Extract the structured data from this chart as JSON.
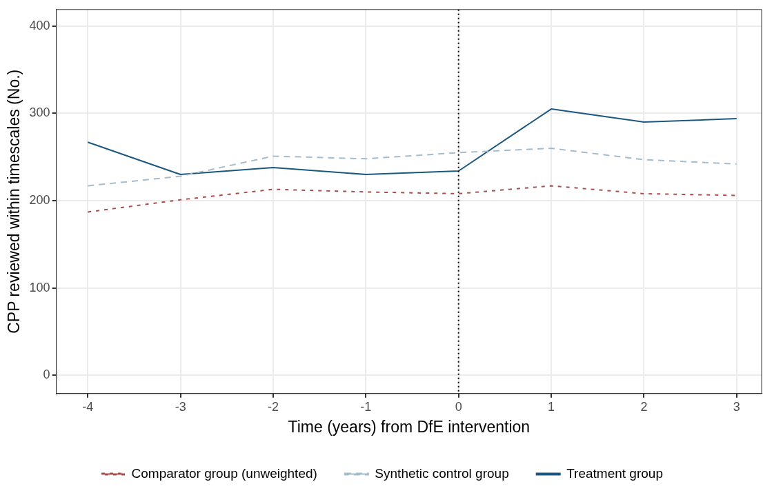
{
  "chart_data": {
    "type": "line",
    "xlabel": "Time (years) from DfE intervention",
    "ylabel": "CPP reviewed within timescales (No.)",
    "x": [
      -4,
      -3,
      -2,
      -1,
      0,
      1,
      2,
      3
    ],
    "series": [
      {
        "name": "Comparator group (unweighted)",
        "color": "#a84d4d",
        "line_style": "dashed",
        "values": [
          187,
          201,
          213,
          210,
          208,
          217,
          208,
          206
        ]
      },
      {
        "name": "Synthetic control group",
        "color": "#a3bccc",
        "line_style": "dashed",
        "values": [
          217,
          228,
          251,
          248,
          255,
          260,
          247,
          242
        ]
      },
      {
        "name": "Treatment group",
        "color": "#1b577e",
        "line_style": "solid",
        "values": [
          267,
          230,
          238,
          230,
          234,
          305,
          290,
          294
        ]
      }
    ],
    "xlim": [
      -4.34,
      3.27
    ],
    "xticks": [
      -4,
      -3,
      -2,
      -1,
      0,
      1,
      2,
      3
    ],
    "ylim": [
      -21,
      419
    ],
    "yticks": [
      0,
      100,
      200,
      300,
      400
    ],
    "ref_lines": [
      {
        "axis": "x",
        "value": 0,
        "color": "#000000",
        "line_style": "dotted"
      }
    ],
    "grid": true,
    "legend": "bottom",
    "marker": "none"
  }
}
